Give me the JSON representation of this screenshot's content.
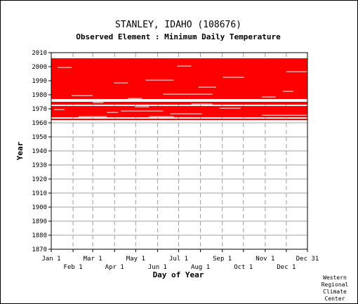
{
  "chart_data": {
    "type": "heatmap",
    "title": "STANLEY, IDAHO   (108676)",
    "subtitle": "Observed Element : Minimum Daily Temperature",
    "xlabel": "Day of Year",
    "ylabel": "Year",
    "x_ticks_upper": [
      "Jan 1",
      "Mar 1",
      "May 1",
      "Jul 1",
      "Sep 1",
      "Nov 1",
      "Dec 31"
    ],
    "x_ticks_lower": [
      "Feb 1",
      "Apr 1",
      "Jun 1",
      "Aug 1",
      "Oct 1",
      "Dec 1"
    ],
    "x_tick_days_upper": [
      1,
      60,
      121,
      182,
      244,
      305,
      365
    ],
    "x_tick_days_lower": [
      32,
      91,
      152,
      213,
      274,
      335
    ],
    "y_ticks": [
      "1870",
      "1880",
      "1890",
      "1900",
      "1910",
      "1920",
      "1930",
      "1940",
      "1950",
      "1960",
      "1970",
      "1980",
      "1990",
      "2000",
      "2010"
    ],
    "xlim": [
      1,
      365
    ],
    "ylim": [
      1870,
      2010
    ],
    "grid": true,
    "data_color": "#ff0000",
    "gap_color": "#ffffff",
    "record_start_year": 1962,
    "record_end_year": 2005,
    "full_years_missing": [
      1963,
      1972,
      1975,
      1976
    ],
    "partial_gaps": [
      {
        "year": 1964,
        "day_start": 40,
        "day_end": 80
      },
      {
        "year": 1964,
        "day_start": 140,
        "day_end": 175
      },
      {
        "year": 1965,
        "day_start": 300,
        "day_end": 365
      },
      {
        "year": 1966,
        "day_start": 170,
        "day_end": 215
      },
      {
        "year": 1967,
        "day_start": 80,
        "day_end": 96
      },
      {
        "year": 1968,
        "day_start": 100,
        "day_end": 160
      },
      {
        "year": 1969,
        "day_start": 5,
        "day_end": 20
      },
      {
        "year": 1970,
        "day_start": 240,
        "day_end": 270
      },
      {
        "year": 1971,
        "day_start": 120,
        "day_end": 140
      },
      {
        "year": 1973,
        "day_start": 200,
        "day_end": 230
      },
      {
        "year": 1974,
        "day_start": 60,
        "day_end": 75
      },
      {
        "year": 1977,
        "day_start": 110,
        "day_end": 130
      },
      {
        "year": 1978,
        "day_start": 300,
        "day_end": 320
      },
      {
        "year": 1979,
        "day_start": 30,
        "day_end": 60
      },
      {
        "year": 1980,
        "day_start": 160,
        "day_end": 230
      },
      {
        "year": 1982,
        "day_start": 330,
        "day_end": 345
      },
      {
        "year": 1985,
        "day_start": 210,
        "day_end": 235
      },
      {
        "year": 1988,
        "day_start": 90,
        "day_end": 110
      },
      {
        "year": 1990,
        "day_start": 135,
        "day_end": 175
      },
      {
        "year": 1992,
        "day_start": 245,
        "day_end": 275
      },
      {
        "year": 1996,
        "day_start": 335,
        "day_end": 365
      },
      {
        "year": 1999,
        "day_start": 10,
        "day_end": 30
      },
      {
        "year": 2000,
        "day_start": 180,
        "day_end": 200
      }
    ]
  },
  "footer": {
    "credit_lines": [
      "Western",
      "Regional",
      "Climate",
      "Center"
    ]
  }
}
